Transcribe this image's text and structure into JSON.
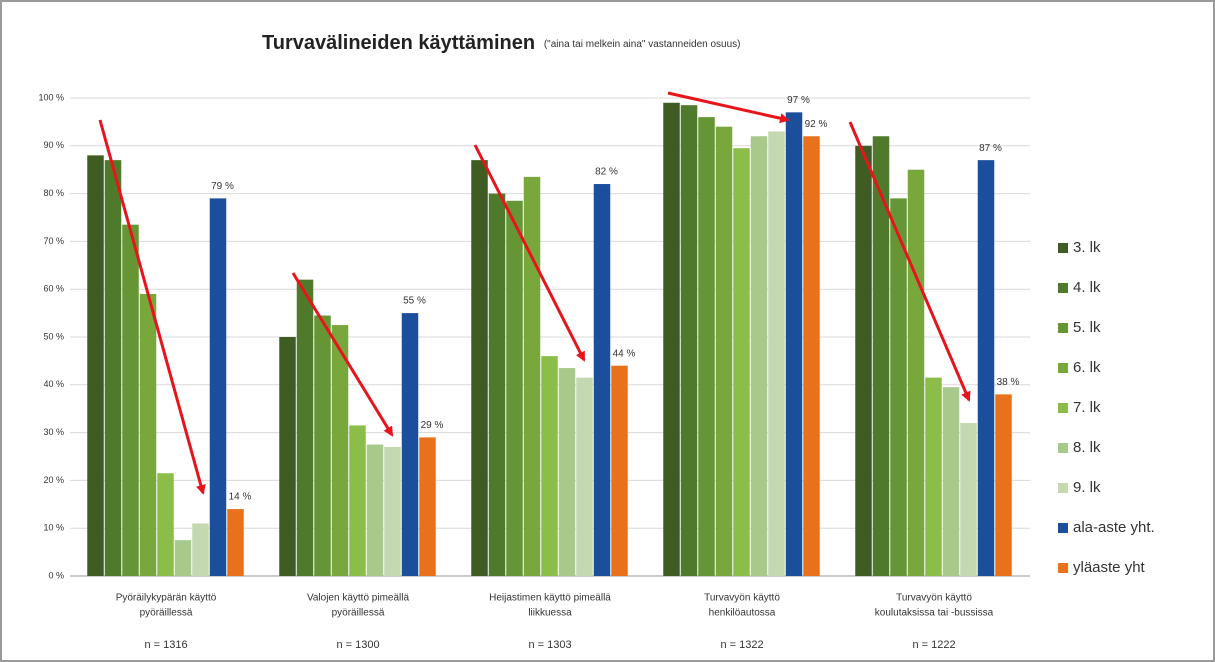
{
  "chart_data": {
    "type": "bar",
    "title": "Turvavälineiden käyttäminen",
    "subtitle": "(\"aina tai melkein aina\" vastanneiden osuus)",
    "categories": [
      [
        "Pyöräilykypärän käyttö",
        "pyöräillessä"
      ],
      [
        "Valojen käyttö pimeällä",
        "pyöräillessä"
      ],
      [
        "Heijastimen käyttö pimeällä",
        "liikkuessa"
      ],
      [
        "Turvavyön käyttö",
        "henkilöautossa"
      ],
      [
        "Turvavyön käyttö",
        "koulutaksissa tai -bussissa"
      ]
    ],
    "sample_sizes": [
      "n = 1316",
      "n = 1300",
      "n = 1303",
      "n = 1322",
      "n = 1222"
    ],
    "series": [
      {
        "name": "3. lk",
        "color": "#3f5c22",
        "values": [
          88,
          50,
          87,
          99,
          90
        ]
      },
      {
        "name": "4. lk",
        "color": "#4f7a2b",
        "values": [
          87,
          62,
          80,
          98.5,
          92
        ]
      },
      {
        "name": "5. lk",
        "color": "#669633",
        "values": [
          73.5,
          54.5,
          78.5,
          96,
          79
        ]
      },
      {
        "name": "6. lk",
        "color": "#78a83b",
        "values": [
          59,
          52.5,
          83.5,
          94,
          85
        ]
      },
      {
        "name": "7. lk",
        "color": "#8dbd49",
        "values": [
          21.5,
          31.5,
          46,
          89.5,
          41.5
        ]
      },
      {
        "name": "8. lk",
        "color": "#a7c98b",
        "values": [
          7.5,
          27.5,
          43.5,
          92,
          39.5
        ]
      },
      {
        "name": "9. lk",
        "color": "#c4d9b1",
        "values": [
          11,
          27,
          41.5,
          93,
          32
        ]
      },
      {
        "name": "ala-aste yht.",
        "color": "#1b4f9c",
        "values": [
          79,
          55,
          82,
          97,
          87
        ],
        "value_labels": [
          "79 %",
          "55 %",
          "82 %",
          "97 %",
          "87 %"
        ]
      },
      {
        "name": "yläaste yht",
        "color": "#e8721c",
        "values": [
          14,
          29,
          44,
          92,
          38
        ],
        "value_labels": [
          "14 %",
          "29 %",
          "44 %",
          "92 %",
          "38 %"
        ]
      }
    ],
    "ylim": [
      0,
      100
    ],
    "yticks": [
      {
        "value": 0,
        "label": "0 %"
      },
      {
        "value": 10,
        "label": "10 %"
      },
      {
        "value": 20,
        "label": "20 %"
      },
      {
        "value": 30,
        "label": "30 %"
      },
      {
        "value": 40,
        "label": "40 %"
      },
      {
        "value": 50,
        "label": "50 %"
      },
      {
        "value": 60,
        "label": "60 %"
      },
      {
        "value": 70,
        "label": "70 %"
      },
      {
        "value": 80,
        "label": "80 %"
      },
      {
        "value": 90,
        "label": "90 %"
      },
      {
        "value": 100,
        "label": "100 %"
      }
    ],
    "grid": true,
    "legend": "right"
  }
}
